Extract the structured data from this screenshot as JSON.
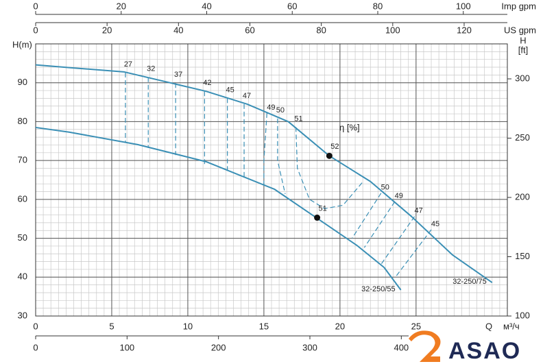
{
  "chart_data": {
    "type": "line",
    "x_label": "Q",
    "x_unit": "м³/ч",
    "y_label": "H(m)",
    "y2_label": "H",
    "y2_unit": "[ft]",
    "xlim": [
      0,
      31
    ],
    "xticks": [
      0,
      5,
      10,
      15,
      20,
      25
    ],
    "ylim": [
      30,
      100
    ],
    "yticks": [
      30,
      40,
      50,
      60,
      70,
      80,
      90
    ],
    "y2lim": [
      100,
      329.5
    ],
    "y2ticks": [
      100,
      150,
      200,
      250,
      300
    ],
    "grid": {
      "minor_x": 0.5,
      "minor_y": 2
    },
    "extra_x_axes": [
      {
        "label": "Imp gpm",
        "xlim": [
          0,
          110.3
        ],
        "xticks": [
          0,
          20,
          40,
          60,
          80,
          100
        ]
      },
      {
        "label": "US gpm",
        "xlim": [
          0,
          132.1
        ],
        "xticks": [
          0,
          20,
          40,
          60,
          80,
          100,
          120
        ]
      },
      {
        "label": "л/мин",
        "xlim": [
          0,
          516
        ],
        "xticks": [
          0,
          100,
          200,
          300,
          400
        ]
      }
    ],
    "color": "#3a8fb5",
    "series": [
      {
        "name": "32-250/75",
        "x": [
          0,
          2.2,
          5.8,
          11.2,
          13.9,
          16.6,
          19.3,
          22,
          24.7,
          27.4,
          30
        ],
        "values": [
          94.6,
          93.9,
          92.8,
          87.8,
          84.5,
          80,
          71.2,
          64.6,
          55.6,
          45.7,
          38.6
        ]
      },
      {
        "name": "32-250/55",
        "x": [
          0,
          2.2,
          6.7,
          11.2,
          15.7,
          18.4,
          21.1,
          22.9,
          24
        ],
        "values": [
          78.5,
          77.3,
          74.1,
          69.7,
          62.6,
          55.4,
          48.2,
          42.5,
          36.7
        ]
      }
    ],
    "efficiency_label": "η [%]",
    "efficiency_lines": [
      {
        "label": "27",
        "x": [
          5.9,
          5.9
        ],
        "values": [
          92.6,
          74.6
        ]
      },
      {
        "label": "32",
        "x": [
          7.4,
          7.4
        ],
        "values": [
          91.4,
          73.2
        ]
      },
      {
        "label": "37",
        "x": [
          9.2,
          9.2
        ],
        "values": [
          89.9,
          71.4
        ]
      },
      {
        "label": "42",
        "x": [
          11.1,
          11.1
        ],
        "values": [
          87.8,
          68.9
        ]
      },
      {
        "label": "45",
        "x": [
          12.6,
          12.6
        ],
        "values": [
          86,
          66.8
        ]
      },
      {
        "label": "47",
        "x": [
          13.7,
          13.7
        ],
        "values": [
          84.5,
          65.1
        ]
      },
      {
        "label": "49",
        "x": [
          15.2,
          15,
          15
        ],
        "values": [
          82.2,
          70,
          62.9
        ]
      },
      {
        "label": "50",
        "x": [
          15.9,
          15.9,
          16.4
        ],
        "values": [
          80.8,
          70,
          61.4
        ]
      },
      {
        "label": "51",
        "x": [
          17.1,
          17.2,
          18,
          19,
          20.2,
          21.5
        ],
        "values": [
          78.6,
          68,
          60,
          57.6,
          58.5,
          64.5
        ]
      },
      {
        "label": "50",
        "x": [
          22.7,
          20.8
        ],
        "values": [
          61.6,
          50
        ]
      },
      {
        "label": "49",
        "x": [
          23.6,
          21.6
        ],
        "values": [
          59.4,
          47.6
        ]
      },
      {
        "label": "47",
        "x": [
          24.9,
          22.7
        ],
        "values": [
          55.6,
          43.3
        ]
      },
      {
        "label": "45",
        "x": [
          26,
          23.7
        ],
        "values": [
          52.2,
          40.3
        ]
      }
    ],
    "points": [
      {
        "label": "52",
        "x": 19.3,
        "value": 71.2
      },
      {
        "label": "51",
        "x": 18.5,
        "value": 55.3
      }
    ]
  },
  "logo": "ASAO"
}
